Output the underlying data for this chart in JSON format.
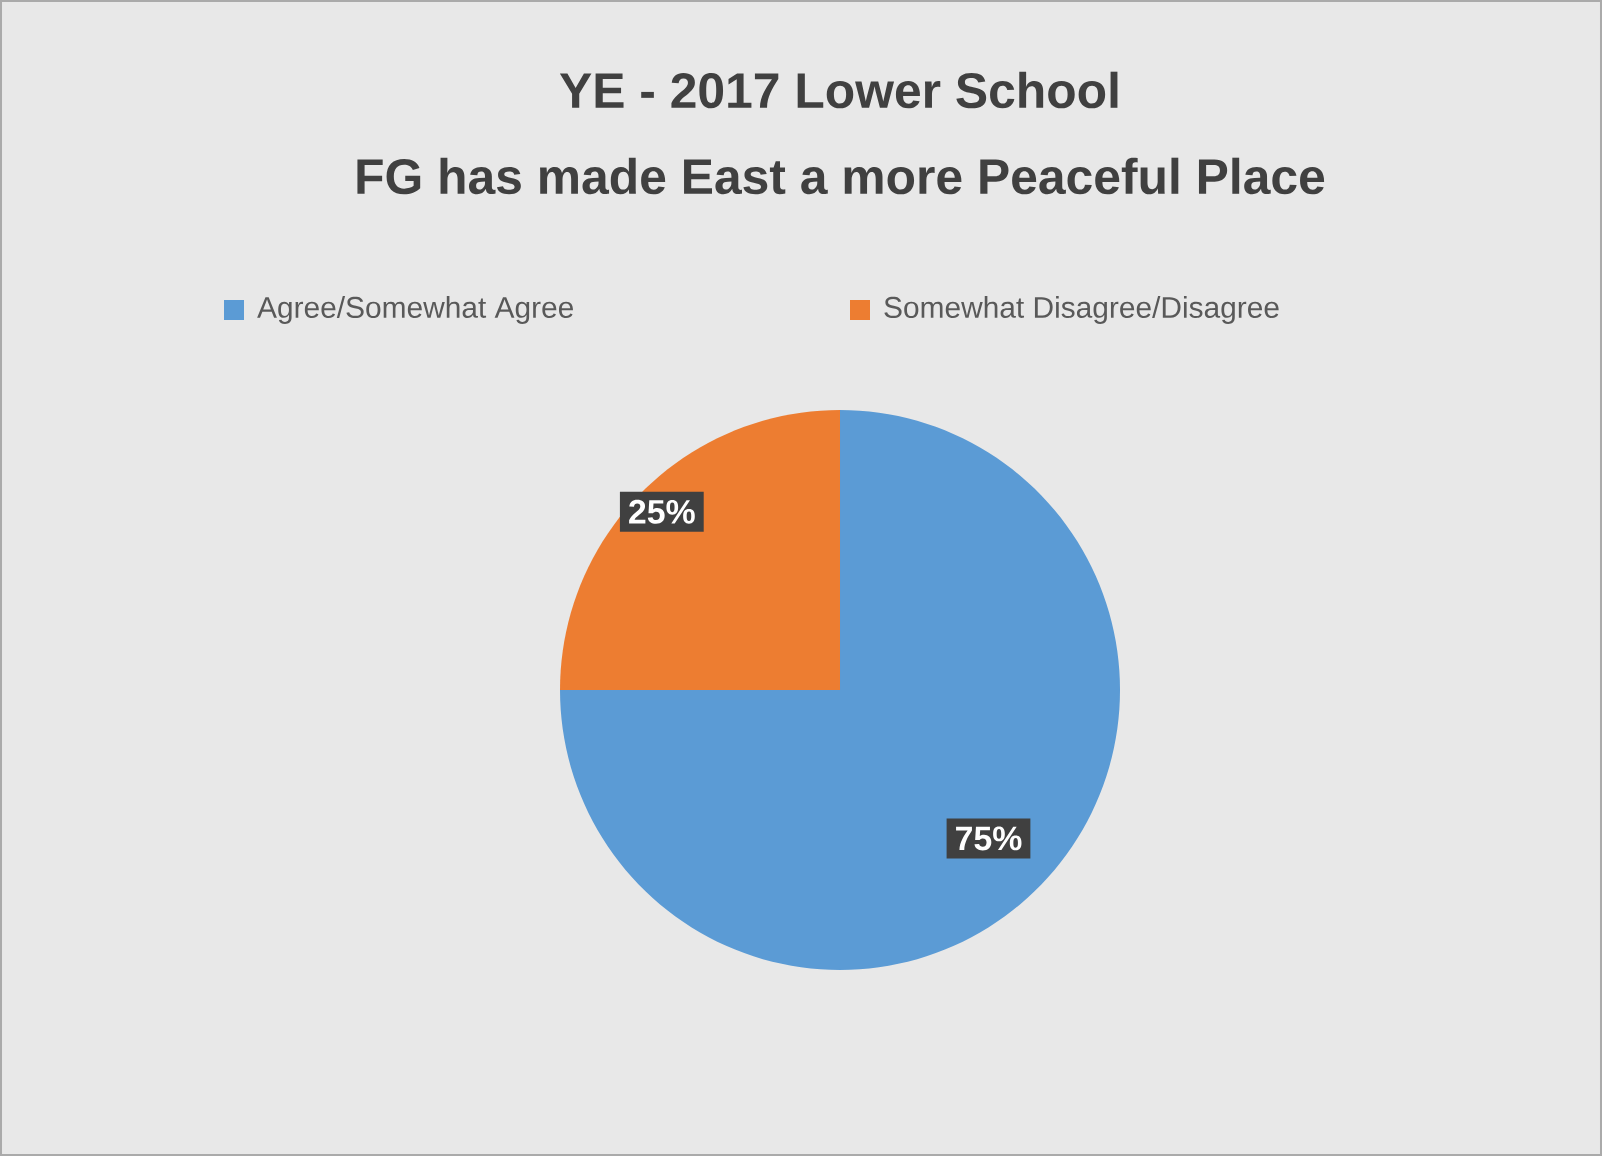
{
  "chart_data": {
    "type": "pie",
    "title": "YE - 2017 Lower School",
    "subtitle": "FG has made East a more Peaceful Place",
    "categories": [
      "Agree/Somewhat Agree",
      "Somewhat Disagree/Disagree"
    ],
    "values": [
      75,
      25
    ],
    "colors": [
      "#5b9bd5",
      "#ed7d31"
    ],
    "value_labels": [
      "75%",
      "25%"
    ],
    "legend": "top"
  }
}
